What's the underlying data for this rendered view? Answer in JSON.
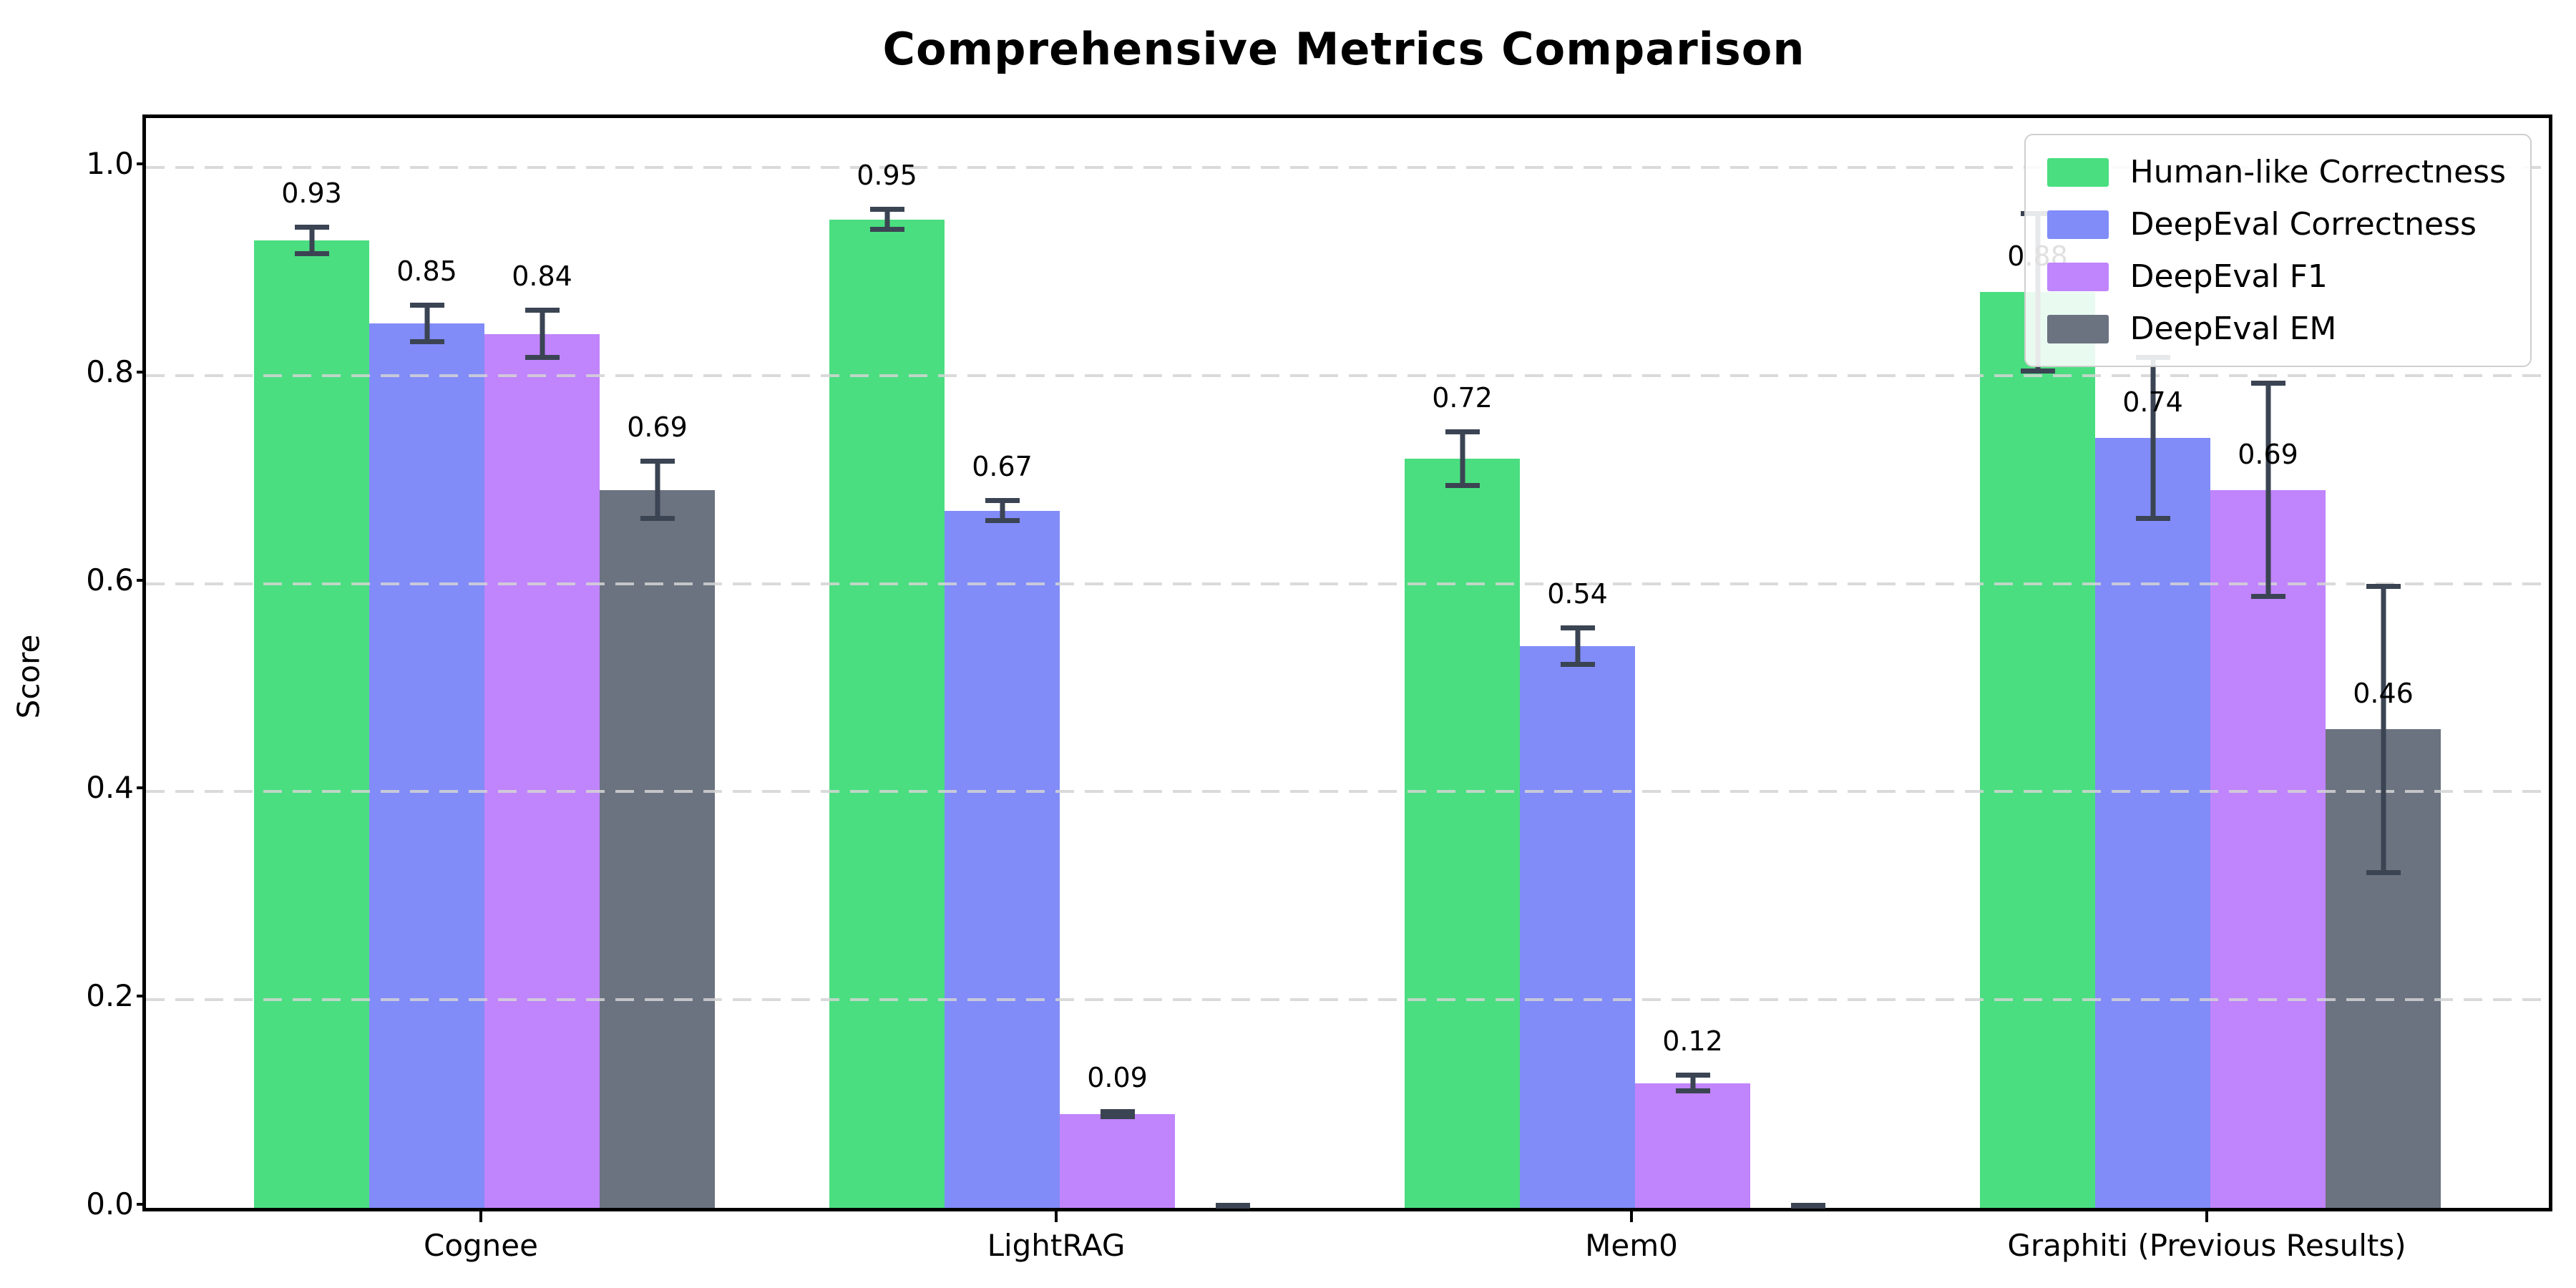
{
  "title": "Comprehensive Metrics Comparison",
  "axes": {
    "ylabel": "Score",
    "xlabel": "",
    "yticks": [
      "0.0",
      "0.2",
      "0.4",
      "0.6",
      "0.8",
      "1.0"
    ],
    "ytick_values": [
      0.0,
      0.2,
      0.4,
      0.6,
      0.8,
      1.0
    ]
  },
  "legend": {
    "position": "upper right",
    "entries": [
      {
        "label": "Human-like Correctness",
        "color": "#4ade80"
      },
      {
        "label": "DeepEval Correctness",
        "color": "#818cf8"
      },
      {
        "label": "DeepEval F1",
        "color": "#c084fc"
      },
      {
        "label": "DeepEval EM",
        "color": "#6b7280"
      }
    ]
  },
  "chart_data": {
    "type": "bar",
    "title": "Comprehensive Metrics Comparison",
    "xlabel": "",
    "ylabel": "Score",
    "ylim": [
      0,
      1.05
    ],
    "grid": "horizontal dashed",
    "legend_position": "upper right",
    "categories": [
      "Cognee",
      "LightRAG",
      "Mem0",
      "Graphiti (Previous Results)"
    ],
    "series": [
      {
        "name": "Human-like Correctness",
        "color": "#4ade80",
        "values": [
          0.93,
          0.95,
          0.72,
          0.88
        ],
        "errors": [
          0.015,
          0.012,
          0.028,
          0.078
        ],
        "value_labels": [
          "0.93",
          "0.95",
          "0.72",
          "0.88"
        ]
      },
      {
        "name": "DeepEval Correctness",
        "color": "#818cf8",
        "values": [
          0.85,
          0.67,
          0.54,
          0.74
        ],
        "errors": [
          0.02,
          0.012,
          0.02,
          0.08
        ],
        "value_labels": [
          "0.85",
          "0.67",
          "0.54",
          "0.74"
        ]
      },
      {
        "name": "DeepEval F1",
        "color": "#c084fc",
        "values": [
          0.84,
          0.09,
          0.12,
          0.69
        ],
        "errors": [
          0.025,
          0.005,
          0.01,
          0.105
        ],
        "value_labels": [
          "0.84",
          "0.09",
          "0.12",
          "0.69"
        ]
      },
      {
        "name": "DeepEval EM",
        "color": "#6b7280",
        "values": [
          0.69,
          0.0,
          0.0,
          0.46
        ],
        "errors": [
          0.03,
          0.004,
          0.004,
          0.14
        ],
        "value_labels": [
          "0.69",
          null,
          null,
          "0.46"
        ]
      }
    ]
  },
  "style_colors": {
    "error_bar": "#3b4453",
    "gridline": "#d4d4d4",
    "axis": "#000000",
    "legend_border": "#cfcfcf"
  }
}
